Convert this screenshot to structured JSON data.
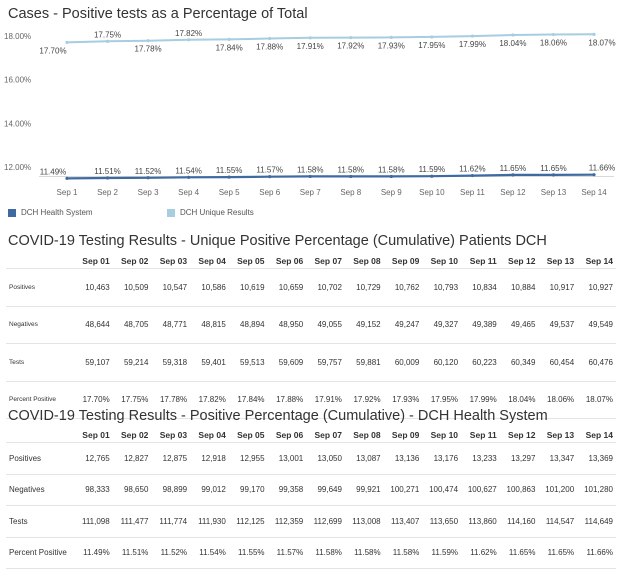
{
  "titles": {
    "chart": "Cases - Positive tests as a Percentage of Total",
    "unique": "COVID-19 Testing Results - Unique Positive Percentage (Cumulative) Patients DCH",
    "health": "COVID-19 Testing Results - Positive Percentage (Cumulative) - DCH Health System"
  },
  "chart_data": {
    "type": "line",
    "title": "Cases - Positive tests as a Percentage of Total",
    "categories": [
      "Sep 1",
      "Sep 2",
      "Sep 3",
      "Sep 4",
      "Sep 5",
      "Sep 6",
      "Sep 7",
      "Sep 8",
      "Sep 9",
      "Sep 10",
      "Sep 11",
      "Sep 12",
      "Sep 13",
      "Sep 14"
    ],
    "yticks": [
      "12.00%",
      "14.00%",
      "16.00%",
      "18.00%"
    ],
    "ytick_values": [
      12,
      14,
      16,
      18
    ],
    "ylim": [
      11.6,
      18.45
    ],
    "grid": false,
    "legend": "bottom-left",
    "series": [
      {
        "name": "DCH Health System",
        "color": "#3e6aa1",
        "values": [
          11.49,
          11.51,
          11.52,
          11.54,
          11.55,
          11.57,
          11.58,
          11.58,
          11.58,
          11.59,
          11.62,
          11.65,
          11.65,
          11.66
        ],
        "labels": [
          "11.49%",
          "11.51%",
          "11.52%",
          "11.54%",
          "11.55%",
          "11.57%",
          "11.58%",
          "11.58%",
          "11.58%",
          "11.59%",
          "11.62%",
          "11.65%",
          "11.65%",
          "11.66%"
        ],
        "label_pos": [
          "above",
          "above",
          "above",
          "above",
          "above",
          "above",
          "above",
          "above",
          "above",
          "above",
          "above",
          "above",
          "above",
          "above"
        ]
      },
      {
        "name": "DCH Unique Results",
        "color": "#a6cde0",
        "values": [
          17.7,
          17.75,
          17.78,
          17.82,
          17.84,
          17.88,
          17.91,
          17.92,
          17.93,
          17.95,
          17.99,
          18.04,
          18.06,
          18.07
        ],
        "labels": [
          "17.70%",
          "17.75%",
          "17.78%",
          "17.82%",
          "17.84%",
          "17.88%",
          "17.91%",
          "17.92%",
          "17.93%",
          "17.95%",
          "17.99%",
          "18.04%",
          "18.06%",
          "18.07%"
        ],
        "label_pos": [
          "below",
          "above",
          "below",
          "above",
          "below",
          "below",
          "below",
          "below",
          "below",
          "below",
          "below",
          "below",
          "below",
          "below"
        ]
      }
    ]
  },
  "unique_table": {
    "headers": [
      "Sep 01",
      "Sep 02",
      "Sep 03",
      "Sep 04",
      "Sep 05",
      "Sep 06",
      "Sep 07",
      "Sep 08",
      "Sep 09",
      "Sep 10",
      "Sep 11",
      "Sep 12",
      "Sep 13",
      "Sep 14"
    ],
    "rows": [
      {
        "label": "Positives",
        "values": [
          "10,463",
          "10,509",
          "10,547",
          "10,586",
          "10,619",
          "10,659",
          "10,702",
          "10,729",
          "10,762",
          "10,793",
          "10,834",
          "10,884",
          "10,917",
          "10,927"
        ]
      },
      {
        "label": "Negatives",
        "values": [
          "48,644",
          "48,705",
          "48,771",
          "48,815",
          "48,894",
          "48,950",
          "49,055",
          "49,152",
          "49,247",
          "49,327",
          "49,389",
          "49,465",
          "49,537",
          "49,549"
        ]
      },
      {
        "label": "Tests",
        "values": [
          "59,107",
          "59,214",
          "59,318",
          "59,401",
          "59,513",
          "59,609",
          "59,757",
          "59,881",
          "60,009",
          "60,120",
          "60,223",
          "60,349",
          "60,454",
          "60,476"
        ]
      },
      {
        "label": "Percent Positive",
        "values": [
          "17.70%",
          "17.75%",
          "17.78%",
          "17.82%",
          "17.84%",
          "17.88%",
          "17.91%",
          "17.92%",
          "17.93%",
          "17.95%",
          "17.99%",
          "18.04%",
          "18.06%",
          "18.07%"
        ]
      }
    ]
  },
  "health_table": {
    "headers": [
      "Sep 01",
      "Sep 02",
      "Sep 03",
      "Sep 04",
      "Sep 05",
      "Sep 06",
      "Sep 07",
      "Sep 08",
      "Sep 09",
      "Sep 10",
      "Sep 11",
      "Sep 12",
      "Sep 13",
      "Sep 14"
    ],
    "rows": [
      {
        "label": "Positives",
        "values": [
          "12,765",
          "12,827",
          "12,875",
          "12,918",
          "12,955",
          "13,001",
          "13,050",
          "13,087",
          "13,136",
          "13,176",
          "13,233",
          "13,297",
          "13,347",
          "13,369"
        ]
      },
      {
        "label": "Negatives",
        "values": [
          "98,333",
          "98,650",
          "98,899",
          "99,012",
          "99,170",
          "99,358",
          "99,649",
          "99,921",
          "100,271",
          "100,474",
          "100,627",
          "100,863",
          "101,200",
          "101,280"
        ]
      },
      {
        "label": "Tests",
        "values": [
          "111,098",
          "111,477",
          "111,774",
          "111,930",
          "112,125",
          "112,359",
          "112,699",
          "113,008",
          "113,407",
          "113,650",
          "113,860",
          "114,160",
          "114,547",
          "114,649"
        ]
      },
      {
        "label": "Percent Positive",
        "values": [
          "11.49%",
          "11.51%",
          "11.52%",
          "11.54%",
          "11.55%",
          "11.57%",
          "11.58%",
          "11.58%",
          "11.58%",
          "11.59%",
          "11.62%",
          "11.65%",
          "11.65%",
          "11.66%"
        ]
      }
    ]
  }
}
